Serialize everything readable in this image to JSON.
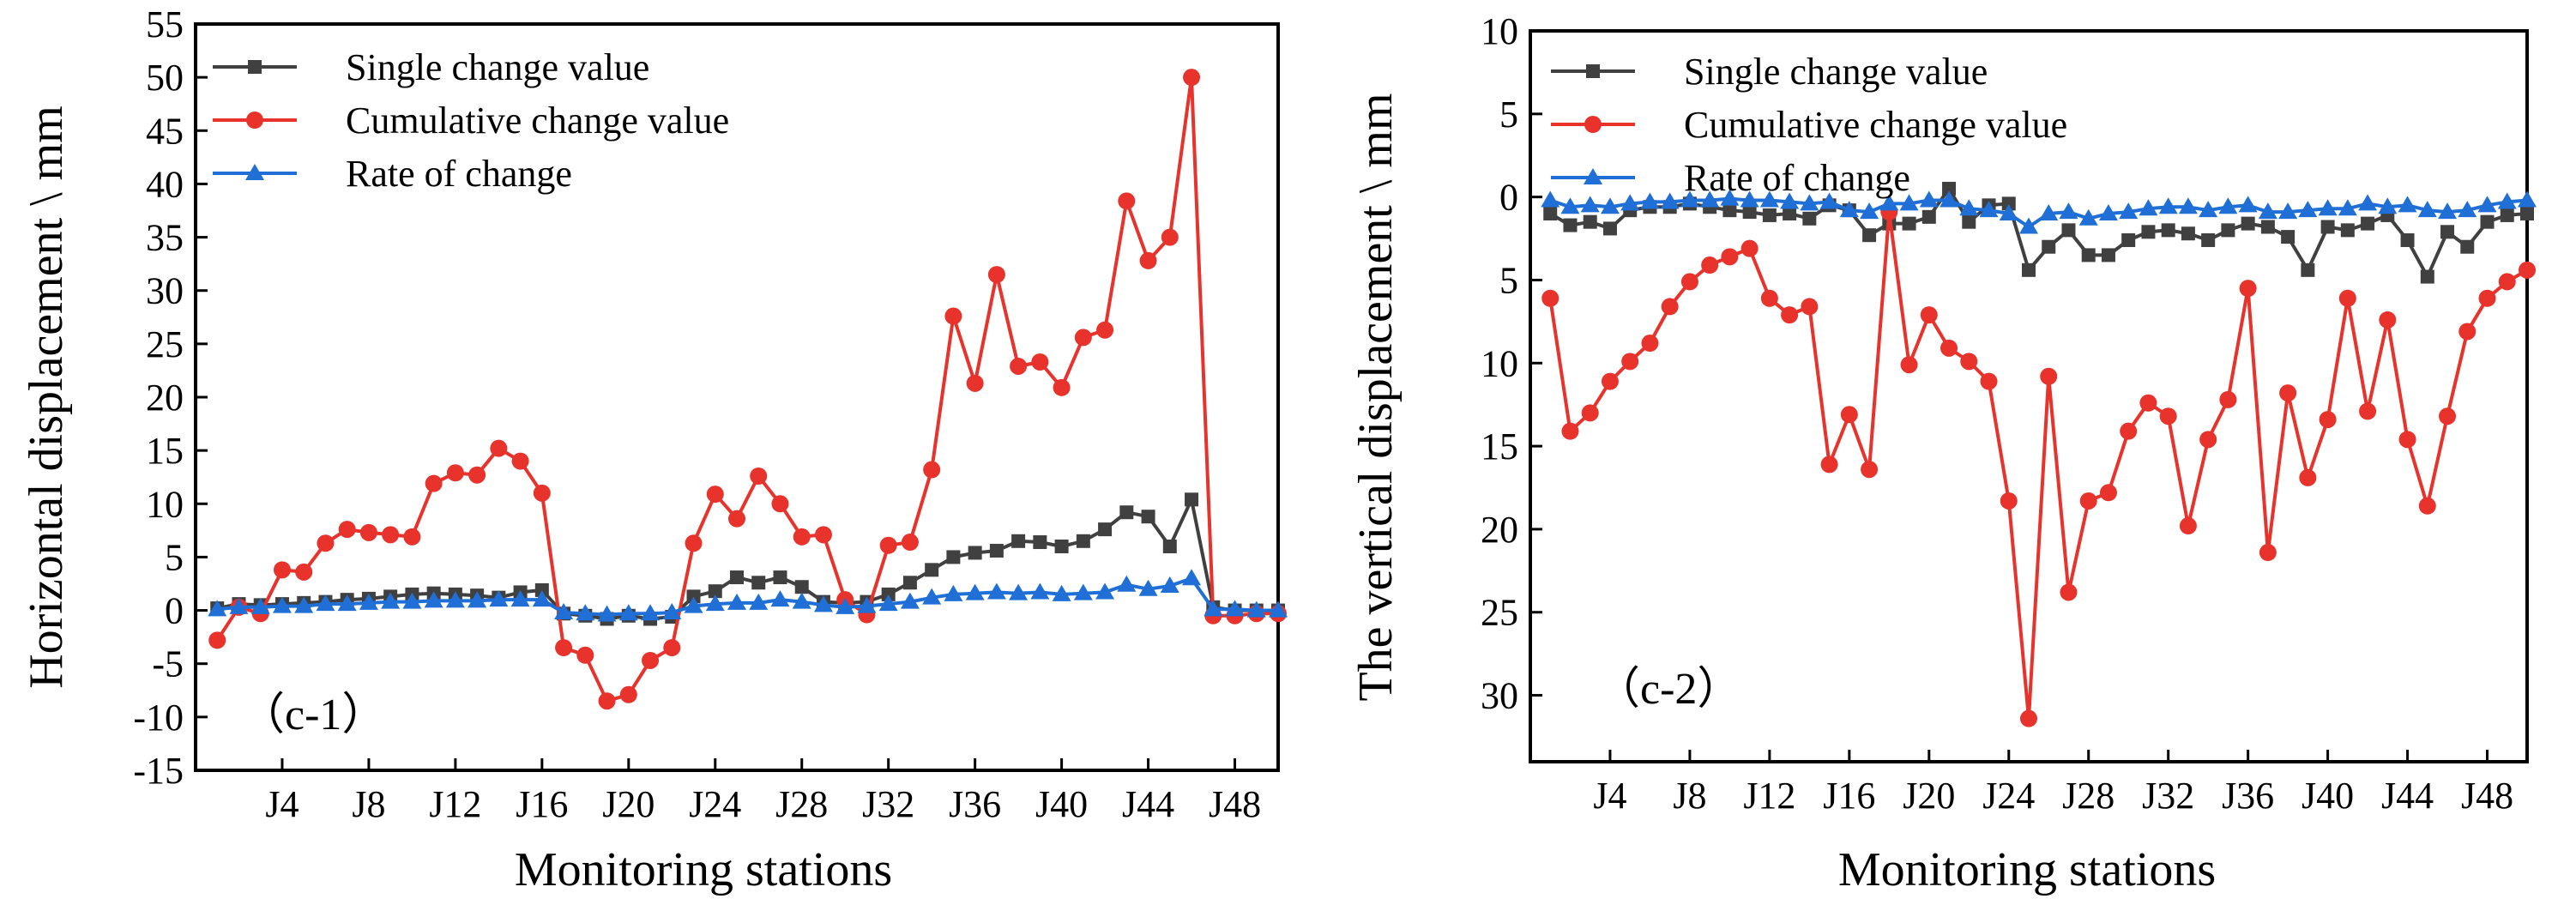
{
  "chart_data": [
    {
      "type": "line",
      "panel_label": "（c-1）",
      "xlabel": "Monitoring stations",
      "ylabel": "Horizontal displacement \\ mm",
      "x": [
        1,
        2,
        3,
        4,
        5,
        6,
        7,
        8,
        9,
        10,
        11,
        12,
        13,
        14,
        15,
        16,
        17,
        18,
        19,
        20,
        21,
        22,
        23,
        24,
        25,
        26,
        27,
        28,
        29,
        30,
        31,
        32,
        33,
        34,
        35,
        36,
        37,
        38,
        39,
        40,
        41,
        42,
        43,
        44,
        45,
        46,
        47,
        48,
        49,
        50
      ],
      "xlim": [
        0,
        50
      ],
      "ylim": [
        -15,
        55
      ],
      "x_ticks": [
        {
          "value": 4,
          "label": "J4"
        },
        {
          "value": 8,
          "label": "J8"
        },
        {
          "value": 12,
          "label": "J12"
        },
        {
          "value": 16,
          "label": "J16"
        },
        {
          "value": 20,
          "label": "J20"
        },
        {
          "value": 24,
          "label": "J24"
        },
        {
          "value": 28,
          "label": "J28"
        },
        {
          "value": 32,
          "label": "J32"
        },
        {
          "value": 36,
          "label": "J36"
        },
        {
          "value": 40,
          "label": "J40"
        },
        {
          "value": 44,
          "label": "J44"
        },
        {
          "value": 48,
          "label": "J48"
        }
      ],
      "y_ticks": [
        {
          "value": 55,
          "label": "55"
        },
        {
          "value": 50,
          "label": "50"
        },
        {
          "value": 45,
          "label": "45"
        },
        {
          "value": 40,
          "label": "40"
        },
        {
          "value": 35,
          "label": "35"
        },
        {
          "value": 30,
          "label": "30"
        },
        {
          "value": 25,
          "label": "25"
        },
        {
          "value": 20,
          "label": "20"
        },
        {
          "value": 15,
          "label": "15"
        },
        {
          "value": 10,
          "label": "10"
        },
        {
          "value": 5,
          "label": "5"
        },
        {
          "value": 0,
          "label": "0"
        },
        {
          "value": -5,
          "label": "-5"
        },
        {
          "value": -10,
          "label": "-10"
        },
        {
          "value": -15,
          "label": "-15"
        }
      ],
      "legend_position": "top-left",
      "series": [
        {
          "name": "Single change value",
          "color": "#404040",
          "marker": "square",
          "values": [
            0.2,
            0.6,
            0.5,
            0.6,
            0.7,
            0.8,
            1.0,
            1.1,
            1.3,
            1.5,
            1.6,
            1.5,
            1.4,
            1.2,
            1.7,
            1.9,
            -0.3,
            -0.5,
            -0.8,
            -0.5,
            -0.8,
            -0.6,
            1.3,
            1.8,
            3.1,
            2.6,
            3.1,
            2.2,
            0.8,
            0.7,
            0.8,
            1.5,
            2.6,
            3.8,
            5.0,
            5.4,
            5.6,
            6.5,
            6.4,
            6.0,
            6.5,
            7.6,
            9.2,
            8.8,
            6.0,
            10.4,
            0.3,
            0.0,
            0.0,
            0.0
          ]
        },
        {
          "name": "Cumulative change value",
          "color": "#e8322c",
          "marker": "circle",
          "values": [
            -2.8,
            0.3,
            -0.3,
            3.8,
            3.6,
            6.3,
            7.6,
            7.3,
            7.1,
            6.9,
            11.9,
            12.9,
            12.7,
            15.2,
            14.0,
            11.0,
            -3.5,
            -4.2,
            -8.5,
            -7.9,
            -4.7,
            -3.5,
            6.3,
            10.9,
            8.6,
            12.6,
            10.0,
            6.9,
            7.1,
            1.0,
            -0.4,
            6.1,
            6.4,
            13.2,
            27.6,
            21.3,
            31.5,
            22.9,
            23.3,
            20.9,
            25.6,
            26.3,
            38.4,
            32.8,
            35.0,
            50.0,
            -0.5,
            -0.5,
            -0.3,
            -0.3
          ]
        },
        {
          "name": "Rate of change",
          "color": "#1f6fd6",
          "marker": "triangle",
          "values": [
            0.1,
            0.3,
            0.3,
            0.4,
            0.4,
            0.6,
            0.6,
            0.7,
            0.8,
            0.8,
            0.9,
            0.9,
            0.9,
            1.0,
            1.0,
            1.0,
            -0.2,
            -0.3,
            -0.4,
            -0.3,
            -0.3,
            -0.2,
            0.4,
            0.6,
            0.7,
            0.7,
            1.0,
            0.8,
            0.5,
            0.3,
            0.4,
            0.6,
            0.8,
            1.2,
            1.5,
            1.6,
            1.7,
            1.6,
            1.7,
            1.5,
            1.6,
            1.7,
            2.4,
            2.0,
            2.3,
            3.0,
            0.1,
            0.1,
            0.0,
            0.0
          ]
        }
      ]
    },
    {
      "type": "line",
      "panel_label": "（c-2）",
      "xlabel": "Monitoring stations",
      "ylabel": "The vertical displacement \\ mm",
      "x": [
        1,
        2,
        3,
        4,
        5,
        6,
        7,
        8,
        9,
        10,
        11,
        12,
        13,
        14,
        15,
        16,
        17,
        18,
        19,
        20,
        21,
        22,
        23,
        24,
        25,
        26,
        27,
        28,
        29,
        30,
        31,
        32,
        33,
        34,
        35,
        36,
        37,
        38,
        39,
        40,
        41,
        42,
        43,
        44,
        45,
        46,
        47,
        48,
        49,
        50
      ],
      "xlim": [
        0,
        50
      ],
      "ylim": [
        -10,
        34
      ],
      "y_inverted": true,
      "x_ticks": [
        {
          "value": 4,
          "label": "J4"
        },
        {
          "value": 8,
          "label": "J8"
        },
        {
          "value": 12,
          "label": "J12"
        },
        {
          "value": 16,
          "label": "J16"
        },
        {
          "value": 20,
          "label": "J20"
        },
        {
          "value": 24,
          "label": "J24"
        },
        {
          "value": 28,
          "label": "J28"
        },
        {
          "value": 32,
          "label": "J32"
        },
        {
          "value": 36,
          "label": "J36"
        },
        {
          "value": 40,
          "label": "J40"
        },
        {
          "value": 44,
          "label": "J44"
        },
        {
          "value": 48,
          "label": "J48"
        }
      ],
      "y_ticks": [
        {
          "value": -10,
          "label": "10"
        },
        {
          "value": -5,
          "label": "5"
        },
        {
          "value": 0,
          "label": "0"
        },
        {
          "value": 5,
          "label": "5"
        },
        {
          "value": 10,
          "label": "10"
        },
        {
          "value": 15,
          "label": "15"
        },
        {
          "value": 20,
          "label": "20"
        },
        {
          "value": 25,
          "label": "25"
        },
        {
          "value": 30,
          "label": "30"
        }
      ],
      "legend_position": "top-left",
      "series": [
        {
          "name": "Single change value",
          "color": "#404040",
          "marker": "square",
          "values": [
            1.0,
            1.7,
            1.5,
            1.9,
            0.8,
            0.6,
            0.6,
            0.4,
            0.6,
            0.8,
            0.9,
            1.1,
            1.0,
            1.3,
            0.5,
            0.8,
            2.3,
            1.6,
            1.6,
            1.2,
            -0.5,
            1.5,
            0.5,
            0.4,
            4.4,
            3.0,
            2.0,
            3.5,
            3.5,
            2.6,
            2.1,
            2.0,
            2.2,
            2.6,
            2.0,
            1.6,
            1.8,
            2.4,
            4.4,
            1.8,
            2.0,
            1.6,
            1.1,
            2.6,
            4.8,
            2.1,
            3.0,
            1.5,
            1.1,
            1.0
          ]
        },
        {
          "name": "Cumulative change value",
          "color": "#e8322c",
          "marker": "circle",
          "values": [
            6.1,
            14.1,
            13.0,
            11.1,
            9.9,
            8.8,
            6.6,
            5.1,
            4.1,
            3.6,
            3.1,
            6.1,
            7.1,
            6.6,
            16.1,
            13.1,
            16.4,
            0.9,
            10.1,
            7.1,
            9.1,
            9.9,
            11.1,
            18.3,
            31.4,
            10.8,
            23.8,
            18.3,
            17.8,
            14.1,
            12.4,
            13.2,
            19.8,
            14.6,
            12.2,
            5.5,
            21.4,
            11.8,
            16.9,
            13.4,
            6.1,
            12.9,
            7.4,
            14.6,
            18.6,
            13.2,
            8.1,
            6.1,
            5.1,
            4.4
          ]
        },
        {
          "name": "Rate of change",
          "color": "#1f6fd6",
          "marker": "triangle",
          "values": [
            0.2,
            0.6,
            0.5,
            0.6,
            0.4,
            0.3,
            0.3,
            0.2,
            0.2,
            0.1,
            0.2,
            0.2,
            0.3,
            0.4,
            0.3,
            0.8,
            0.9,
            0.4,
            0.4,
            0.2,
            0.2,
            0.7,
            0.8,
            1.0,
            1.8,
            1.0,
            0.9,
            1.3,
            1.0,
            0.9,
            0.7,
            0.6,
            0.6,
            0.8,
            0.6,
            0.5,
            0.9,
            0.9,
            0.8,
            0.7,
            0.7,
            0.4,
            0.6,
            0.5,
            0.8,
            0.9,
            0.8,
            0.5,
            0.3,
            0.2
          ]
        }
      ]
    }
  ]
}
